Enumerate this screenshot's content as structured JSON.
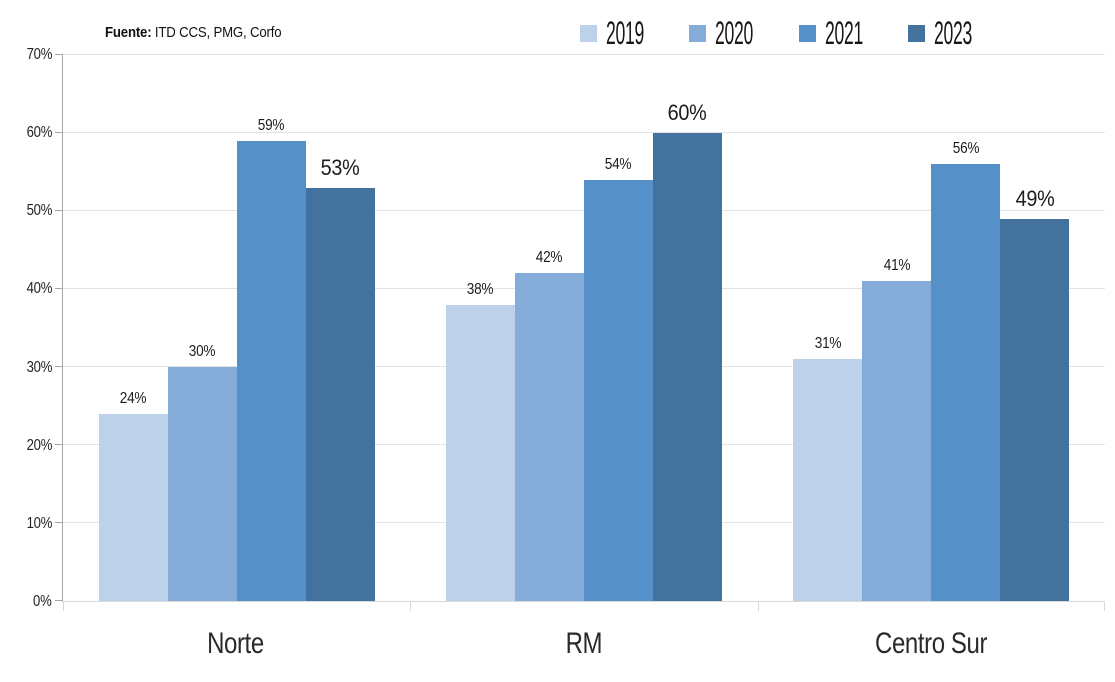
{
  "source": {
    "label_bold": "Fuente:",
    "label_rest": " ITD CCS, PMG, Corfo"
  },
  "chart_data": {
    "type": "bar",
    "title": "",
    "categories": [
      "Norte",
      "RM",
      "Centro Sur"
    ],
    "series": [
      {
        "name": "2019",
        "color": "#BDD2EA",
        "values": [
          24,
          38,
          31
        ]
      },
      {
        "name": "2020",
        "color": "#85ACD9",
        "values": [
          30,
          42,
          41
        ]
      },
      {
        "name": "2021",
        "color": "#5590C8",
        "values": [
          59,
          54,
          56
        ]
      },
      {
        "name": "2023",
        "color": "#44729E",
        "values": [
          53,
          60,
          49
        ],
        "emphasized_labels": true
      }
    ],
    "value_suffix": "%",
    "ylim": [
      0,
      70
    ],
    "ytick_step": 10,
    "ytick_suffix": "%",
    "grid": true,
    "legend_position": "top-right",
    "data_labels": true
  },
  "colors": {
    "axis_line": "#A6A6A6",
    "grid_line": "#E2E2E2",
    "bottom_axis": "#D9D9D9",
    "text": "#1F1F1F",
    "background": "#FFFFFF"
  }
}
